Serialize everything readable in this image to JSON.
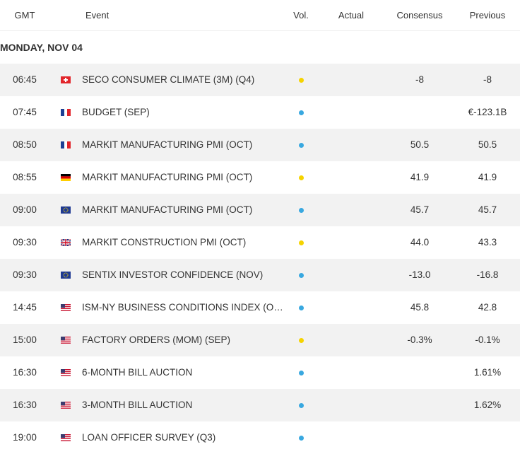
{
  "header": {
    "columns": [
      "GMT",
      "Event",
      "Vol.",
      "Actual",
      "Consensus",
      "Previous"
    ]
  },
  "date": "MONDAY, NOV 04",
  "rows": [
    {
      "time": "06:45",
      "event": "SECO CONSUMER CLIMATE (3M) (Q4)",
      "consensus": "-8",
      "previous": "-8"
    },
    {
      "time": "07:45",
      "event": "BUDGET (SEP)",
      "previous": "€-123.1B"
    },
    {
      "time": "08:50",
      "event": "MARKIT MANUFACTURING PMI (OCT)",
      "consensus": "50.5",
      "previous": "50.5"
    },
    {
      "time": "08:55",
      "event": "MARKIT MANUFACTURING PMI (OCT)",
      "consensus": "41.9",
      "previous": "41.9"
    },
    {
      "time": "09:00",
      "event": "MARKIT MANUFACTURING PMI (OCT)",
      "consensus": "45.7",
      "previous": "45.7"
    },
    {
      "time": "09:30",
      "event": "MARKIT CONSTRUCTION PMI (OCT)",
      "consensus": "44.0",
      "previous": "43.3"
    },
    {
      "time": "09:30",
      "event": "SENTIX INVESTOR CONFIDENCE (NOV)",
      "consensus": "-13.0",
      "previous": "-16.8"
    },
    {
      "time": "14:45",
      "event": "ISM-NY BUSINESS CONDITIONS INDEX (O…",
      "consensus": "45.8",
      "previous": "42.8"
    },
    {
      "time": "15:00",
      "event": "FACTORY ORDERS (MOM) (SEP)",
      "consensus": "-0.3%",
      "previous": "-0.1%"
    },
    {
      "time": "16:30",
      "event": "6-MONTH BILL AUCTION",
      "previous": "1.61%"
    },
    {
      "time": "16:30",
      "event": "3-MONTH BILL AUCTION",
      "previous": "1.62%"
    },
    {
      "time": "19:00",
      "event": "LOAN OFFICER SURVEY (Q3)"
    }
  ]
}
